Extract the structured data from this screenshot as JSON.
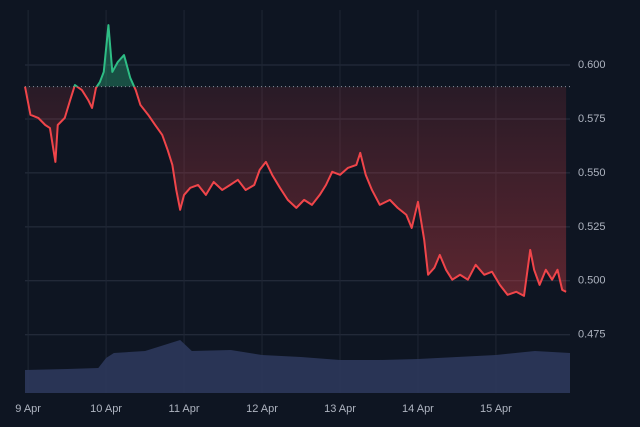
{
  "chart_data": {
    "type": "baseline-line",
    "x": [
      -0.04,
      0.03,
      0.13,
      0.22,
      0.28,
      0.35,
      0.38,
      0.47,
      0.54,
      0.6,
      0.69,
      0.77,
      0.82,
      0.87,
      0.92,
      0.97,
      1.03,
      1.08,
      1.15,
      1.23,
      1.31,
      1.38,
      1.44,
      1.54,
      1.63,
      1.72,
      1.79,
      1.85,
      1.9,
      1.95,
      2.0,
      2.08,
      2.18,
      2.28,
      2.38,
      2.49,
      2.59,
      2.69,
      2.79,
      2.9,
      2.97,
      3.05,
      3.13,
      3.23,
      3.33,
      3.44,
      3.54,
      3.64,
      3.74,
      3.82,
      3.9,
      4.0,
      4.1,
      4.21,
      4.26,
      4.33,
      4.41,
      4.51,
      4.64,
      4.74,
      4.85,
      4.92,
      5.0,
      5.08,
      5.13,
      5.21,
      5.28,
      5.36,
      5.44,
      5.54,
      5.64,
      5.74,
      5.85,
      5.95,
      6.05,
      6.15,
      6.26,
      6.36,
      6.44,
      6.49,
      6.56,
      6.64,
      6.72,
      6.79,
      6.85,
      6.9
    ],
    "values": [
      0.59,
      0.5769,
      0.5755,
      0.5722,
      0.5708,
      0.5551,
      0.5722,
      0.5755,
      0.5838,
      0.5907,
      0.5884,
      0.5838,
      0.5801,
      0.5894,
      0.5921,
      0.5968,
      0.6185,
      0.5968,
      0.6014,
      0.6046,
      0.594,
      0.5884,
      0.5815,
      0.5769,
      0.5722,
      0.5676,
      0.5606,
      0.5537,
      0.5421,
      0.5329,
      0.5398,
      0.5431,
      0.5444,
      0.5398,
      0.5458,
      0.5421,
      0.5444,
      0.5468,
      0.5421,
      0.5444,
      0.5514,
      0.5551,
      0.5491,
      0.5431,
      0.5375,
      0.5338,
      0.5375,
      0.5352,
      0.5398,
      0.5444,
      0.5505,
      0.5491,
      0.5523,
      0.5537,
      0.5593,
      0.5491,
      0.5421,
      0.5352,
      0.5375,
      0.5338,
      0.5306,
      0.5245,
      0.5366,
      0.519,
      0.5028,
      0.506,
      0.512,
      0.5051,
      0.5005,
      0.5028,
      0.5005,
      0.5074,
      0.5028,
      0.5042,
      0.4981,
      0.4935,
      0.4949,
      0.493,
      0.5143,
      0.5051,
      0.4981,
      0.5051,
      0.5005,
      0.5051,
      0.4958,
      0.4949
    ],
    "baseline": 0.59,
    "up_color": "#2ebd85",
    "down_color": "#f0454a",
    "volume": {
      "x": [
        -0.04,
        0.5,
        0.9,
        1.0,
        1.1,
        1.5,
        1.95,
        2.1,
        2.6,
        3.0,
        3.5,
        4.0,
        4.5,
        5.0,
        5.5,
        6.0,
        6.5,
        6.95
      ],
      "values": [
        23,
        24,
        25,
        35,
        40,
        42,
        53,
        42,
        43,
        38,
        36,
        33,
        33,
        34,
        36,
        38,
        42,
        40
      ],
      "color": "#2e3a5e"
    },
    "xlim": [
      -0.04,
      6.95
    ],
    "ylim": [
      0.448,
      0.6255
    ],
    "yticks": [
      {
        "value": 0.6,
        "label": "0.600"
      },
      0.575,
      {
        "value": 0.55,
        "label": "0.550"
      },
      0.525,
      {
        "value": 0.5,
        "label": "0.500"
      },
      0.475
    ],
    "xticks": [
      {
        "value": 0,
        "label": "9 Apr"
      },
      {
        "value": 1,
        "label": "10 Apr"
      },
      {
        "value": 2,
        "label": "11 Apr"
      },
      {
        "value": 3,
        "label": "12 Apr"
      },
      {
        "value": 4,
        "label": "13 Apr"
      },
      {
        "value": 5,
        "label": "14 Apr"
      },
      {
        "value": 6,
        "label": "15 Apr"
      }
    ],
    "grid": true
  }
}
